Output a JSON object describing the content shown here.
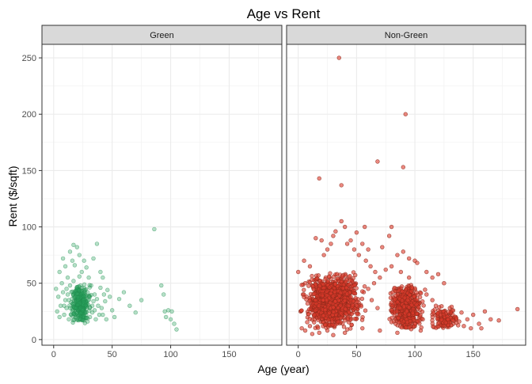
{
  "chart_data": {
    "type": "scatter",
    "title": "Age vs Rent",
    "xlabel": "Age (year)",
    "ylabel": "Rent ($/sqft)",
    "xlim": [
      -10,
      195
    ],
    "ylim": [
      -5,
      262
    ],
    "x_ticks": [
      0,
      50,
      100,
      150
    ],
    "y_ticks": [
      0,
      50,
      100,
      150,
      200,
      250
    ],
    "grid": true,
    "legend": "none",
    "panels": [
      {
        "name": "Green",
        "fill": "#2ca25f",
        "stroke": "#1f8a4c",
        "opacity": 0.35,
        "points": [
          [
            5,
            60
          ],
          [
            8,
            72
          ],
          [
            10,
            65
          ],
          [
            12,
            55
          ],
          [
            14,
            78
          ],
          [
            16,
            70
          ],
          [
            17,
            84
          ],
          [
            18,
            66
          ],
          [
            20,
            82
          ],
          [
            22,
            75
          ],
          [
            24,
            60
          ],
          [
            26,
            70
          ],
          [
            28,
            64
          ],
          [
            30,
            55
          ],
          [
            34,
            72
          ],
          [
            37,
            85
          ],
          [
            40,
            60
          ],
          [
            42,
            55
          ],
          [
            2,
            45
          ],
          [
            4,
            38
          ],
          [
            6,
            30
          ],
          [
            8,
            42
          ],
          [
            9,
            22
          ],
          [
            10,
            35
          ],
          [
            11,
            28
          ],
          [
            12,
            40
          ],
          [
            13,
            18
          ],
          [
            14,
            48
          ],
          [
            15,
            33
          ],
          [
            16,
            25
          ],
          [
            17,
            52
          ],
          [
            18,
            38
          ],
          [
            19,
            20
          ],
          [
            20,
            44
          ],
          [
            21,
            30
          ],
          [
            22,
            56
          ],
          [
            23,
            26
          ],
          [
            24,
            46
          ],
          [
            25,
            36
          ],
          [
            26,
            22
          ],
          [
            27,
            42
          ],
          [
            28,
            32
          ],
          [
            29,
            16
          ],
          [
            30,
            38
          ],
          [
            31,
            28
          ],
          [
            32,
            48
          ],
          [
            33,
            24
          ],
          [
            34,
            34
          ],
          [
            35,
            40
          ],
          [
            36,
            18
          ],
          [
            38,
            30
          ],
          [
            40,
            46
          ],
          [
            42,
            22
          ],
          [
            44,
            34
          ],
          [
            46,
            44
          ],
          [
            48,
            38
          ],
          [
            50,
            26
          ],
          [
            52,
            20
          ],
          [
            56,
            36
          ],
          [
            60,
            42
          ],
          [
            65,
            30
          ],
          [
            70,
            24
          ],
          [
            75,
            35
          ],
          [
            3,
            25
          ],
          [
            5,
            20
          ],
          [
            7,
            50
          ],
          [
            9,
            30
          ],
          [
            11,
            45
          ],
          [
            13,
            35
          ],
          [
            15,
            22
          ],
          [
            17,
            40
          ],
          [
            19,
            28
          ],
          [
            21,
            36
          ],
          [
            23,
            48
          ],
          [
            25,
            24
          ],
          [
            27,
            34
          ],
          [
            29,
            42
          ],
          [
            31,
            20
          ],
          [
            33,
            30
          ],
          [
            35,
            26
          ],
          [
            37,
            36
          ],
          [
            39,
            22
          ],
          [
            41,
            28
          ],
          [
            43,
            40
          ],
          [
            45,
            18
          ],
          [
            86,
            98
          ],
          [
            92,
            48
          ],
          [
            94,
            40
          ],
          [
            95,
            25
          ],
          [
            96,
            20
          ],
          [
            98,
            26
          ],
          [
            100,
            18
          ],
          [
            101,
            25
          ],
          [
            103,
            14
          ],
          [
            105,
            9
          ]
        ],
        "dense": {
          "x": [
            12,
            34
          ],
          "y": [
            14,
            50
          ],
          "count": 320,
          "seed": 7
        }
      },
      {
        "name": "Non-Green",
        "fill": "#dd3b2c",
        "stroke": "#8c2a1c",
        "opacity": 0.6,
        "points": [
          [
            35,
            250
          ],
          [
            92,
            200
          ],
          [
            90,
            153
          ],
          [
            68,
            158
          ],
          [
            18,
            143
          ],
          [
            37,
            137
          ],
          [
            37,
            105
          ],
          [
            40,
            100
          ],
          [
            57,
            100
          ],
          [
            80,
            100
          ],
          [
            50,
            95
          ],
          [
            45,
            88
          ],
          [
            55,
            85
          ],
          [
            60,
            80
          ],
          [
            72,
            82
          ],
          [
            78,
            92
          ],
          [
            85,
            75
          ],
          [
            90,
            78
          ],
          [
            95,
            72
          ],
          [
            100,
            70
          ],
          [
            102,
            68
          ],
          [
            110,
            60
          ],
          [
            115,
            55
          ],
          [
            120,
            58
          ],
          [
            125,
            50
          ],
          [
            0,
            60
          ],
          [
            5,
            70
          ],
          [
            10,
            65
          ],
          [
            15,
            90
          ],
          [
            20,
            88
          ],
          [
            22,
            75
          ],
          [
            25,
            80
          ],
          [
            28,
            85
          ],
          [
            30,
            92
          ],
          [
            32,
            96
          ],
          [
            42,
            85
          ],
          [
            48,
            80
          ],
          [
            52,
            75
          ],
          [
            58,
            70
          ],
          [
            62,
            65
          ],
          [
            66,
            60
          ],
          [
            70,
            55
          ],
          [
            75,
            62
          ],
          [
            80,
            65
          ],
          [
            88,
            60
          ],
          [
            95,
            55
          ],
          [
            110,
            40
          ],
          [
            115,
            35
          ],
          [
            118,
            30
          ],
          [
            122,
            25
          ],
          [
            125,
            22
          ],
          [
            128,
            18
          ],
          [
            130,
            28
          ],
          [
            133,
            14
          ],
          [
            135,
            20
          ],
          [
            138,
            16
          ],
          [
            140,
            24
          ],
          [
            142,
            12
          ],
          [
            145,
            18
          ],
          [
            148,
            10
          ],
          [
            150,
            22
          ],
          [
            155,
            14
          ],
          [
            157,
            10
          ],
          [
            160,
            25
          ],
          [
            165,
            18
          ],
          [
            172,
            17
          ],
          [
            188,
            27
          ],
          [
            3,
            10
          ],
          [
            6,
            8
          ],
          [
            10,
            12
          ],
          [
            12,
            5
          ],
          [
            18,
            6
          ],
          [
            25,
            8
          ],
          [
            30,
            4
          ],
          [
            40,
            6
          ],
          [
            55,
            10
          ],
          [
            70,
            8
          ],
          [
            85,
            6
          ],
          [
            100,
            12
          ],
          [
            105,
            8
          ],
          [
            2,
            25
          ],
          [
            4,
            40
          ],
          [
            6,
            50
          ],
          [
            8,
            32
          ],
          [
            60,
            45
          ],
          [
            63,
            35
          ],
          [
            65,
            50
          ],
          [
            68,
            28
          ]
        ],
        "dense": [
          {
            "x": [
              0,
              60
            ],
            "y": [
              8,
              60
            ],
            "count": 950,
            "seed": 11
          },
          {
            "x": [
              5,
              45
            ],
            "y": [
              20,
              45
            ],
            "count": 450,
            "seed": 23
          },
          {
            "x": [
              75,
              110
            ],
            "y": [
              8,
              50
            ],
            "count": 520,
            "seed": 31
          },
          {
            "x": [
              110,
              140
            ],
            "y": [
              8,
              30
            ],
            "count": 120,
            "seed": 41
          }
        ]
      }
    ]
  }
}
